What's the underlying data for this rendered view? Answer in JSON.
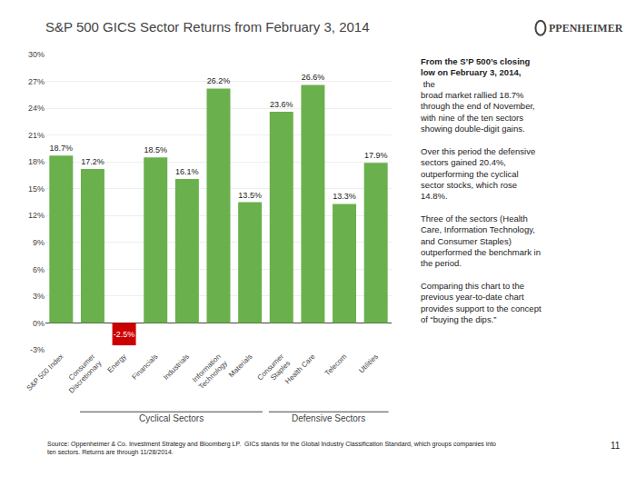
{
  "chart_data": {
    "type": "bar",
    "title": "S&P 500 GICS Sector Returns from February 3, 2014",
    "logo": "PPENHEIMER",
    "categories": [
      "S&P 500 Index",
      "Consumer\nDiscretionary",
      "Energy",
      "Financials",
      "Industrials",
      "Information\nTechnology",
      "Materials",
      "Consumer\nStaples",
      "Health Care",
      "Telecom",
      "Utilities"
    ],
    "values": [
      18.7,
      17.2,
      -2.5,
      18.5,
      16.1,
      26.2,
      13.5,
      23.6,
      26.6,
      13.3,
      17.9
    ],
    "value_labels": [
      "18.7%",
      "17.2%",
      "-2.5%",
      "18.5%",
      "16.1%",
      "26.2%",
      "13.5%",
      "23.6%",
      "26.6%",
      "13.3%",
      "17.9%"
    ],
    "data_labels": true,
    "colors": [
      "#6ab04c",
      "#6ab04c",
      "#cc0000",
      "#6ab04c",
      "#6ab04c",
      "#6ab04c",
      "#6ab04c",
      "#6ab04c",
      "#6ab04c",
      "#6ab04c",
      "#6ab04c"
    ],
    "ylim": [
      -3,
      30
    ],
    "yticks": [
      {
        "value": -3,
        "label": "-3%"
      },
      {
        "value": 0,
        "label": "0%"
      },
      {
        "value": 3,
        "label": "3%"
      },
      {
        "value": 6,
        "label": "6%"
      },
      {
        "value": 9,
        "label": "9%"
      },
      {
        "value": 12,
        "label": "12%"
      },
      {
        "value": 15,
        "label": "15%"
      },
      {
        "value": 18,
        "label": "18%"
      },
      {
        "value": 21,
        "label": "21%"
      },
      {
        "value": 24,
        "label": "24%"
      },
      {
        "value": 27,
        "label": "27%"
      },
      {
        "value": 30,
        "label": "30%"
      }
    ],
    "grid": true,
    "groups": [
      {
        "label": "Cyclical Sectors",
        "categories": [
          "Consumer\nDiscretionary",
          "Energy",
          "Financials",
          "Industrials",
          "Information\nTechnology",
          "Materials"
        ]
      },
      {
        "label": "Defensive Sectors",
        "categories": [
          "Consumer\nStaples",
          "Health Care",
          "Telecom",
          "Utilities"
        ]
      }
    ],
    "notes": [
      {
        "bold": "From the S’P 500’s closing\nlow on February 3, 2014,",
        "text": " the\nbroad market rallied 18.7%\nthrough the end of November,\nwith nine of the ten sectors\nshowing double-digit gains."
      },
      {
        "text": "Over this period the defensive\nsectors gained 20.4%,\noutperforming the cyclical\nsector stocks, which rose\n14.8%."
      },
      {
        "text": "Three of the sectors (Health\nCare, Information Technology,\nand Consumer Staples)\noutperformed the benchmark in\nthe period."
      },
      {
        "text": "Comparing this chart to the\nprevious year-to-date chart\nprovides support to the concept\nof “buying the dips.”"
      }
    ],
    "source": "Source: Oppenheimer & Co. Investment Strategy and Bloomberg LP.  GICs stands for the Global Industry Classification Standard, which groups companies into\nten sectors. Returns are through 11/28/2014.",
    "page_number": "11"
  }
}
